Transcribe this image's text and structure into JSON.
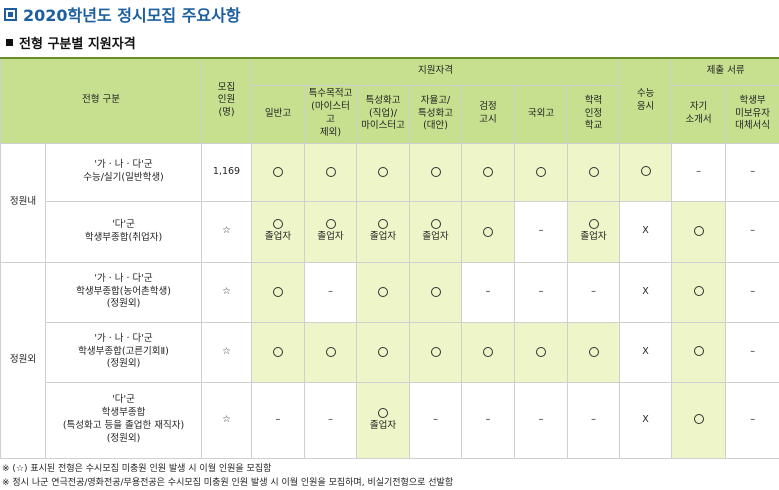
{
  "title": "2020학년도 정시모집 주요사항",
  "subtitle": "전형 구분별 지원자격",
  "header": {
    "type": "전형 구분",
    "quota": "모집\n인원\n(명)",
    "eligibility": "지원자격",
    "suneung": "수능\n응시",
    "documents": "제출 서류",
    "columns": [
      "일반고",
      "특수목적고\n(마이스터고\n제외)",
      "특성화고\n(직업)/\n마이스터고",
      "자율고/\n특성화고\n(대안)",
      "검정\n고시",
      "국외고",
      "학력\n인정\n학교"
    ],
    "doc_columns": [
      "자기\n소개서",
      "학생부\n미보유자\n대체서식"
    ]
  },
  "groups": {
    "inside": "정원내",
    "outside": "정원외"
  },
  "rows": [
    {
      "type": "'가 · 나 · 다'군\n수능/실기(일반학생)",
      "quota": "1,169",
      "cells": [
        {
          "mark": "circle",
          "sub": ""
        },
        {
          "mark": "circle",
          "sub": ""
        },
        {
          "mark": "circle",
          "sub": ""
        },
        {
          "mark": "circle",
          "sub": ""
        },
        {
          "mark": "circle",
          "sub": ""
        },
        {
          "mark": "circle",
          "sub": ""
        },
        {
          "mark": "circle",
          "sub": ""
        }
      ],
      "suneung": "circle",
      "docs": [
        "–",
        "–"
      ]
    },
    {
      "type": "'다'군\n학생부종합(취업자)",
      "quota": "☆",
      "cells": [
        {
          "mark": "circle",
          "sub": "졸업자"
        },
        {
          "mark": "circle",
          "sub": "졸업자"
        },
        {
          "mark": "circle",
          "sub": "졸업자"
        },
        {
          "mark": "circle",
          "sub": "졸업자"
        },
        {
          "mark": "circle",
          "sub": ""
        },
        {
          "mark": "–",
          "sub": ""
        },
        {
          "mark": "circle",
          "sub": "졸업자"
        }
      ],
      "suneung": "X",
      "docs": [
        "circle",
        "–"
      ]
    },
    {
      "type": "'가 · 나 · 다'군\n학생부종합(농어촌학생)\n(정원외)",
      "quota": "☆",
      "cells": [
        {
          "mark": "circle",
          "sub": ""
        },
        {
          "mark": "–",
          "sub": ""
        },
        {
          "mark": "circle",
          "sub": ""
        },
        {
          "mark": "circle",
          "sub": ""
        },
        {
          "mark": "–",
          "sub": ""
        },
        {
          "mark": "–",
          "sub": ""
        },
        {
          "mark": "–",
          "sub": ""
        }
      ],
      "suneung": "X",
      "docs": [
        "circle",
        "–"
      ]
    },
    {
      "type": "'가 · 나 · 다'군\n학생부종합(고른기회Ⅱ)\n(정원외)",
      "quota": "☆",
      "cells": [
        {
          "mark": "circle",
          "sub": ""
        },
        {
          "mark": "circle",
          "sub": ""
        },
        {
          "mark": "circle",
          "sub": ""
        },
        {
          "mark": "circle",
          "sub": ""
        },
        {
          "mark": "circle",
          "sub": ""
        },
        {
          "mark": "circle",
          "sub": ""
        },
        {
          "mark": "circle",
          "sub": ""
        }
      ],
      "suneung": "X",
      "docs": [
        "circle",
        "–"
      ]
    },
    {
      "type": "'다'군\n학생부종합\n(특성화고 등을 졸업한 재직자)\n(정원외)",
      "quota": "☆",
      "cells": [
        {
          "mark": "–",
          "sub": ""
        },
        {
          "mark": "–",
          "sub": ""
        },
        {
          "mark": "circle",
          "sub": "졸업자"
        },
        {
          "mark": "–",
          "sub": ""
        },
        {
          "mark": "–",
          "sub": ""
        },
        {
          "mark": "–",
          "sub": ""
        },
        {
          "mark": "–",
          "sub": ""
        }
      ],
      "suneung": "X",
      "docs": [
        "circle",
        "–"
      ]
    }
  ],
  "notes": [
    "※ (☆) 표시된 전형은 수시모집 미충원 인원 발생 시 이월 인원을 모집함",
    "※ 정시 나군 연극전공/영화전공/무용전공은 수시모집 미충원 인원 발생 시 이월 인원을 모집하며, 비실기전형으로 선발함"
  ],
  "highlight_color": "#eef5c9",
  "header_color": "#c7e08f",
  "title_color": "#1d5f9e"
}
